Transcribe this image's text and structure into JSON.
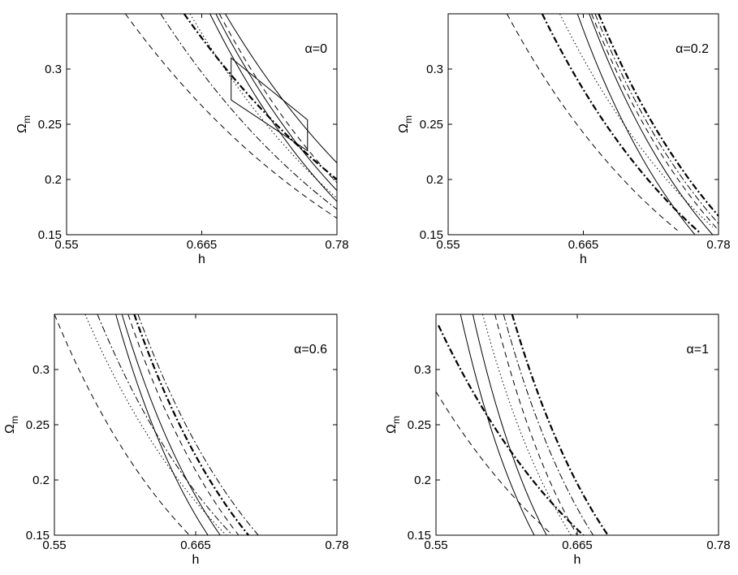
{
  "chart_data": [
    {
      "type": "line",
      "annotation": "α=0",
      "xlabel": "h",
      "ylabel": "Ω",
      "ylabel_sub": "m",
      "xlim": [
        0.55,
        0.78
      ],
      "ylim": [
        0.15,
        0.35
      ],
      "xticks": [
        "0.55",
        "0.665",
        "0.78"
      ],
      "yticks": [
        "0.15",
        "0.2",
        "0.25",
        "0.3"
      ],
      "grid": false,
      "series": [
        {
          "style": "dashed",
          "x": [
            0.6,
            0.78
          ],
          "y": [
            0.35,
            0.165
          ]
        },
        {
          "style": "dashdot",
          "x": [
            0.63,
            0.78
          ],
          "y": [
            0.35,
            0.173
          ]
        },
        {
          "style": "dashdot-bold",
          "x": [
            0.65,
            0.78
          ],
          "y": [
            0.35,
            0.2
          ]
        },
        {
          "style": "dotted",
          "x": [
            0.655,
            0.78
          ],
          "y": [
            0.35,
            0.183
          ]
        },
        {
          "style": "solid",
          "x": [
            0.672,
            0.78
          ],
          "y": [
            0.35,
            0.18
          ]
        },
        {
          "style": "solid",
          "x": [
            0.677,
            0.78
          ],
          "y": [
            0.35,
            0.19
          ]
        },
        {
          "style": "dashed",
          "x": [
            0.68,
            0.78
          ],
          "y": [
            0.35,
            0.197
          ]
        },
        {
          "style": "solid",
          "x": [
            0.685,
            0.78
          ],
          "y": [
            0.35,
            0.215
          ]
        }
      ],
      "outline": [
        [
          0.69,
          0.31
        ],
        [
          0.755,
          0.254
        ],
        [
          0.755,
          0.226
        ],
        [
          0.69,
          0.272
        ]
      ]
    },
    {
      "type": "line",
      "annotation": "α=0.2",
      "xlabel": "h",
      "ylabel": "Ω",
      "ylabel_sub": "m",
      "xlim": [
        0.55,
        0.78
      ],
      "ylim": [
        0.15,
        0.35
      ],
      "xticks": [
        "0.55",
        "0.665",
        "0.78"
      ],
      "yticks": [
        "0.15",
        "0.2",
        "0.25",
        "0.3"
      ],
      "grid": false,
      "series": [
        {
          "style": "dashed",
          "x": [
            0.6,
            0.745
          ],
          "y": [
            0.35,
            0.154
          ]
        },
        {
          "style": "dashdot-bold",
          "x": [
            0.63,
            0.765
          ],
          "y": [
            0.35,
            0.151
          ]
        },
        {
          "style": "dotted",
          "x": [
            0.645,
            0.775
          ],
          "y": [
            0.35,
            0.157
          ]
        },
        {
          "style": "solid",
          "x": [
            0.66,
            0.76
          ],
          "y": [
            0.35,
            0.15
          ]
        },
        {
          "style": "solid",
          "x": [
            0.67,
            0.775
          ],
          "y": [
            0.35,
            0.15
          ]
        },
        {
          "style": "dashed",
          "x": [
            0.672,
            0.78
          ],
          "y": [
            0.35,
            0.154
          ]
        },
        {
          "style": "dashdot",
          "x": [
            0.675,
            0.78
          ],
          "y": [
            0.35,
            0.16
          ]
        },
        {
          "style": "dashdot-bold",
          "x": [
            0.678,
            0.78
          ],
          "y": [
            0.35,
            0.167
          ]
        }
      ]
    },
    {
      "type": "line",
      "annotation": "α=0.6",
      "xlabel": "h",
      "ylabel": "Ω",
      "ylabel_sub": "m",
      "xlim": [
        0.55,
        0.78
      ],
      "ylim": [
        0.15,
        0.35
      ],
      "xticks": [
        "0.55",
        "0.665",
        "0.78"
      ],
      "yticks": [
        "0.15",
        "0.2",
        "0.25",
        "0.3"
      ],
      "grid": false,
      "series": [
        {
          "style": "dashed",
          "x": [
            0.55,
            0.66
          ],
          "y": [
            0.35,
            0.15
          ]
        },
        {
          "style": "dotted",
          "x": [
            0.575,
            0.69
          ],
          "y": [
            0.35,
            0.15
          ]
        },
        {
          "style": "dashdot",
          "x": [
            0.585,
            0.695
          ],
          "y": [
            0.35,
            0.15
          ]
        },
        {
          "style": "solid",
          "x": [
            0.6,
            0.675
          ],
          "y": [
            0.35,
            0.15
          ]
        },
        {
          "style": "solid",
          "x": [
            0.605,
            0.685
          ],
          "y": [
            0.35,
            0.15
          ]
        },
        {
          "style": "dashed",
          "x": [
            0.61,
            0.7
          ],
          "y": [
            0.35,
            0.15
          ]
        },
        {
          "style": "dashdot-bold",
          "x": [
            0.615,
            0.708
          ],
          "y": [
            0.35,
            0.15
          ]
        },
        {
          "style": "dashdot",
          "x": [
            0.618,
            0.716
          ],
          "y": [
            0.35,
            0.15
          ]
        }
      ]
    },
    {
      "type": "line",
      "annotation": "α=1",
      "xlabel": "h",
      "ylabel": "Ω",
      "ylabel_sub": "m",
      "xlim": [
        0.55,
        0.78
      ],
      "ylim": [
        0.15,
        0.35
      ],
      "xticks": [
        "0.55",
        "0.665",
        "0.78"
      ],
      "yticks": [
        "0.15",
        "0.2",
        "0.25",
        "0.3"
      ],
      "grid": false,
      "series": [
        {
          "style": "dashed",
          "x": [
            0.55,
            0.645
          ],
          "y": [
            0.28,
            0.15
          ]
        },
        {
          "style": "dashdot-bold",
          "x": [
            0.552,
            0.67
          ],
          "y": [
            0.34,
            0.15
          ]
        },
        {
          "style": "solid",
          "x": [
            0.57,
            0.63
          ],
          "y": [
            0.35,
            0.15
          ]
        },
        {
          "style": "solid",
          "x": [
            0.58,
            0.64
          ],
          "y": [
            0.35,
            0.15
          ]
        },
        {
          "style": "dotted",
          "x": [
            0.588,
            0.66
          ],
          "y": [
            0.35,
            0.15
          ]
        },
        {
          "style": "dashed",
          "x": [
            0.598,
            0.665
          ],
          "y": [
            0.35,
            0.15
          ]
        },
        {
          "style": "dashdot",
          "x": [
            0.605,
            0.678
          ],
          "y": [
            0.35,
            0.15
          ]
        },
        {
          "style": "dashdot-bold",
          "x": [
            0.612,
            0.69
          ],
          "y": [
            0.35,
            0.15
          ]
        }
      ]
    }
  ]
}
